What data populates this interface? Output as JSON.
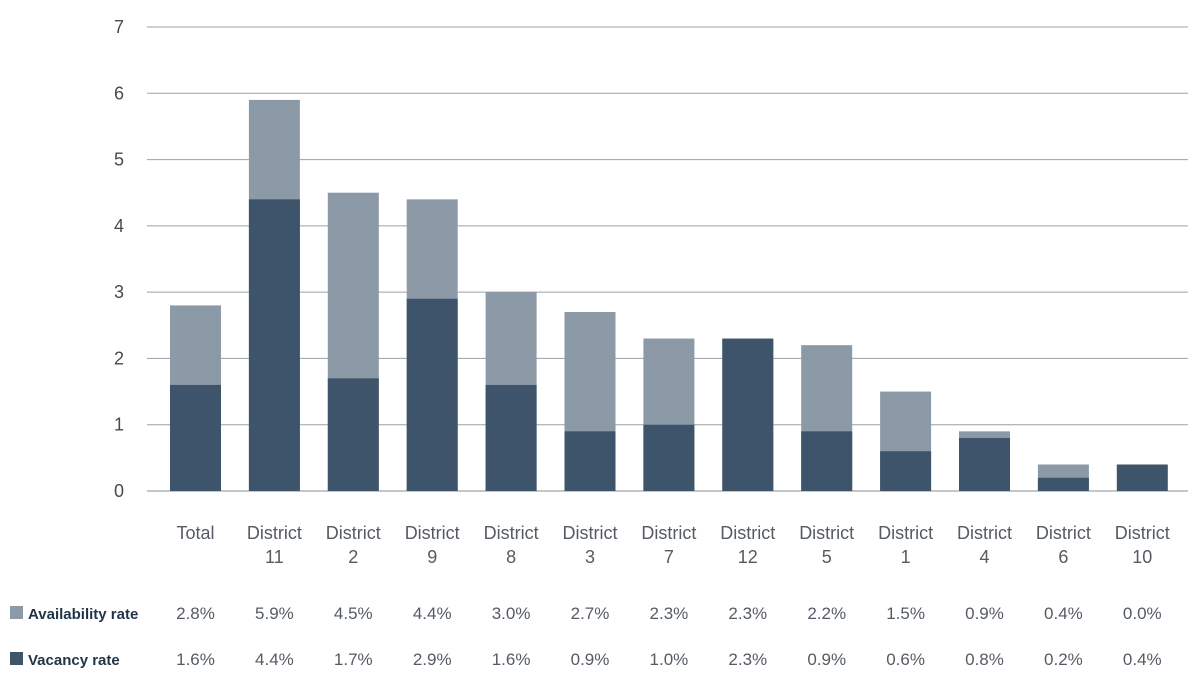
{
  "chart_data": {
    "type": "bar",
    "stacked": false,
    "overlay": true,
    "ylim": [
      0,
      7
    ],
    "yticks": [
      0,
      1,
      2,
      3,
      4,
      5,
      6,
      7
    ],
    "grid": true,
    "categories": [
      [
        "Total"
      ],
      [
        "District",
        "11"
      ],
      [
        "District",
        "2"
      ],
      [
        "District",
        "9"
      ],
      [
        "District",
        "8"
      ],
      [
        "District",
        "3"
      ],
      [
        "District",
        "7"
      ],
      [
        "District",
        "12"
      ],
      [
        "District",
        "5"
      ],
      [
        "District",
        "1"
      ],
      [
        "District",
        "4"
      ],
      [
        "District",
        "6"
      ],
      [
        "District",
        "10"
      ]
    ],
    "series": [
      {
        "name": "Availability rate",
        "color": "#8c99a6",
        "values": [
          2.8,
          5.9,
          4.5,
          4.4,
          3.0,
          2.7,
          2.3,
          2.3,
          2.2,
          1.5,
          0.9,
          0.4,
          0.0
        ],
        "labels": [
          "2.8%",
          "5.9%",
          "4.5%",
          "4.4%",
          "3.0%",
          "2.7%",
          "2.3%",
          "2.3%",
          "2.2%",
          "1.5%",
          "0.9%",
          "0.4%",
          "0.0%"
        ]
      },
      {
        "name": "Vacancy rate",
        "color": "#3e546a",
        "values": [
          1.6,
          4.4,
          1.7,
          2.9,
          1.6,
          0.9,
          1.0,
          2.3,
          0.9,
          0.6,
          0.8,
          0.2,
          0.4
        ],
        "labels": [
          "1.6%",
          "4.4%",
          "1.7%",
          "2.9%",
          "1.6%",
          "0.9%",
          "1.0%",
          "2.3%",
          "0.9%",
          "0.6%",
          "0.8%",
          "0.2%",
          "0.4%"
        ]
      }
    ]
  }
}
